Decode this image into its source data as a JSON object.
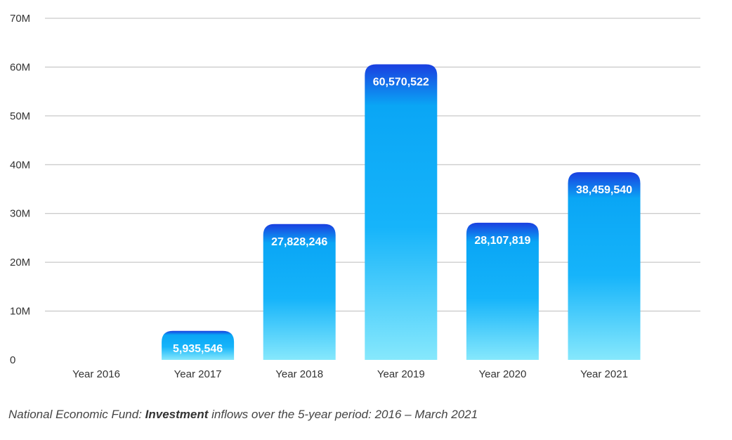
{
  "chart_data": {
    "type": "bar",
    "categories": [
      "Year 2016",
      "Year 2017",
      "Year 2018",
      "Year 2019",
      "Year 2020",
      "Year 2021"
    ],
    "values": [
      0,
      5935546,
      27828246,
      60570522,
      28107819,
      38459540
    ],
    "value_labels": [
      "",
      "5,935,546",
      "27,828,246",
      "60,570,522",
      "28,107,819",
      "38,459,540"
    ],
    "y_ticks": [
      0,
      10000000,
      20000000,
      30000000,
      40000000,
      50000000,
      60000000,
      70000000
    ],
    "y_tick_labels": [
      "0",
      "10M",
      "20M",
      "30M",
      "40M",
      "50M",
      "60M",
      "70M"
    ],
    "ylim": [
      0,
      70000000
    ],
    "grid": true,
    "legend": "none",
    "bar_gradient": {
      "top": "#1a3fe0",
      "upper": "#0aa6f5",
      "bottom": "#86e8fc"
    },
    "title": "",
    "xlabel": "",
    "ylabel": ""
  },
  "caption": {
    "before": "National Economic Fund: ",
    "bold": "Investment",
    "after": " inflows over the 5-year period: 2016 – March 2021"
  }
}
